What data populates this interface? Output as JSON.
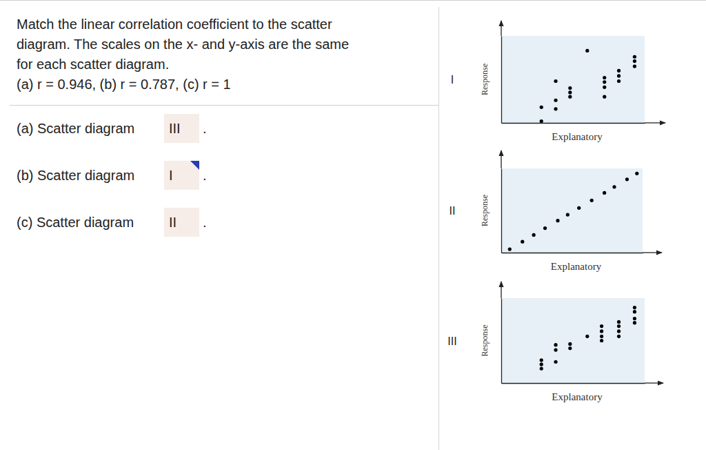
{
  "question": [
    "Match the linear correlation coefficient to the scatter",
    "diagram. The scales on the x- and y-axis are the same",
    "for each scatter diagram.",
    "(a) r = 0.946, (b) r = 0.787, (c) r = 1"
  ],
  "answers": [
    {
      "label": "(a) Scatter diagram",
      "answer": "III"
    },
    {
      "label": "(b) Scatter diagram",
      "answer": "I"
    },
    {
      "label": "(c) Scatter diagram",
      "answer": "II"
    }
  ],
  "answer_end": ".",
  "chart_data": [
    {
      "type": "scatter",
      "title": "I",
      "x_label": "Explanatory",
      "y_label": "Response",
      "x": [
        2.8,
        2.8,
        3.8,
        3.8,
        3.8,
        4.8,
        4.8,
        4.8,
        6.0,
        7.2,
        7.2,
        7.2,
        7.2,
        8.2,
        8.2,
        8.2,
        9.3,
        9.3,
        9.3
      ],
      "y": [
        1.8,
        0.2,
        2.6,
        1.6,
        4.8,
        4.0,
        3.5,
        3.0,
        8.3,
        5.2,
        4.7,
        4.1,
        3.0,
        6.0,
        5.4,
        4.8,
        7.6,
        7.1,
        6.5
      ],
      "xlim": [
        0,
        10
      ],
      "ylim": [
        0,
        10
      ],
      "tick_labels": false,
      "color": "#000000",
      "marker": "circle"
    },
    {
      "type": "scatter",
      "title": "II",
      "x_label": "Explanatory",
      "y_label": "Response",
      "x": [
        0.6,
        1.5,
        2.3,
        3.1,
        4.0,
        4.7,
        5.5,
        6.4,
        7.3,
        8.0,
        8.9,
        9.6
      ],
      "y": [
        0.4,
        1.3,
        2.1,
        2.9,
        3.8,
        4.5,
        5.3,
        6.2,
        7.1,
        7.8,
        8.7,
        9.4
      ],
      "xlim": [
        0,
        10
      ],
      "ylim": [
        0,
        10
      ],
      "tick_labels": false,
      "color": "#000000",
      "marker": "circle"
    },
    {
      "type": "scatter",
      "title": "III",
      "x_label": "Explanatory",
      "y_label": "Response",
      "x": [
        2.8,
        2.8,
        2.8,
        3.8,
        3.8,
        3.8,
        4.8,
        4.8,
        6.0,
        7.0,
        7.0,
        7.0,
        7.0,
        8.2,
        8.2,
        8.2,
        8.2,
        9.3,
        9.3,
        9.3,
        9.3
      ],
      "y": [
        2.7,
        2.2,
        1.7,
        4.5,
        3.9,
        2.5,
        4.6,
        4.1,
        5.5,
        6.7,
        6.1,
        5.5,
        5.0,
        7.2,
        6.7,
        6.1,
        5.5,
        8.9,
        8.4,
        7.6,
        7.1
      ],
      "xlim": [
        0,
        10
      ],
      "ylim": [
        0,
        10
      ],
      "tick_labels": false,
      "color": "#000000",
      "marker": "circle"
    }
  ]
}
